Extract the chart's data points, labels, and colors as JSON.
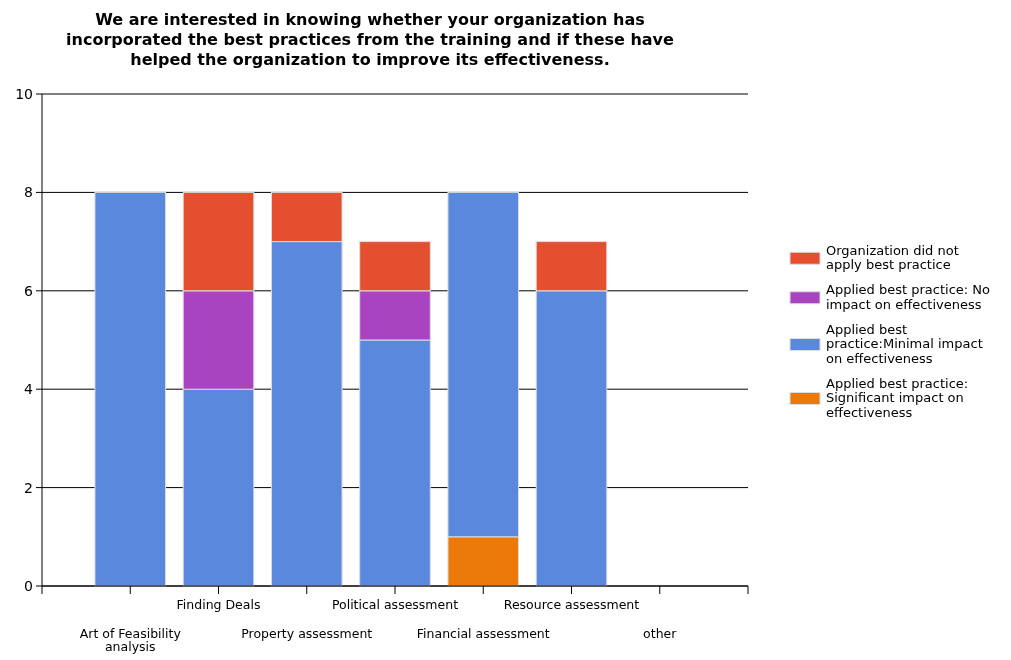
{
  "chart_data": {
    "type": "bar",
    "stacked": true,
    "title": "We are interested in knowing whether your organization has incorporated the best practices from the training and if these have helped the organization to improve its effectiveness.",
    "categories": [
      "Art of Feasibility analysis",
      "Finding Deals",
      "Property assessment",
      "Political assessment",
      "Financial assessment",
      "Resource assessment",
      "other"
    ],
    "series": [
      {
        "name": "Applied best practice: Significant impact on effectiveness",
        "color": "#ec7a0a",
        "values": [
          0,
          0,
          0,
          0,
          1,
          0,
          0
        ]
      },
      {
        "name": "Applied best practice:Minimal impact on effectiveness",
        "color": "#5a88dc",
        "values": [
          8,
          4,
          7,
          5,
          7,
          6,
          0
        ]
      },
      {
        "name": "Applied best practice: No impact on effectiveness",
        "color": "#a844c0",
        "values": [
          0,
          2,
          0,
          1,
          0,
          0,
          0
        ]
      },
      {
        "name": "Organization did not apply best practice",
        "color": "#e4502f",
        "values": [
          0,
          2,
          1,
          1,
          0,
          1,
          0
        ]
      }
    ],
    "ylim": [
      0,
      10
    ],
    "yticks": [
      0,
      2,
      4,
      6,
      8,
      10
    ],
    "grid": "y",
    "legend": "right"
  }
}
